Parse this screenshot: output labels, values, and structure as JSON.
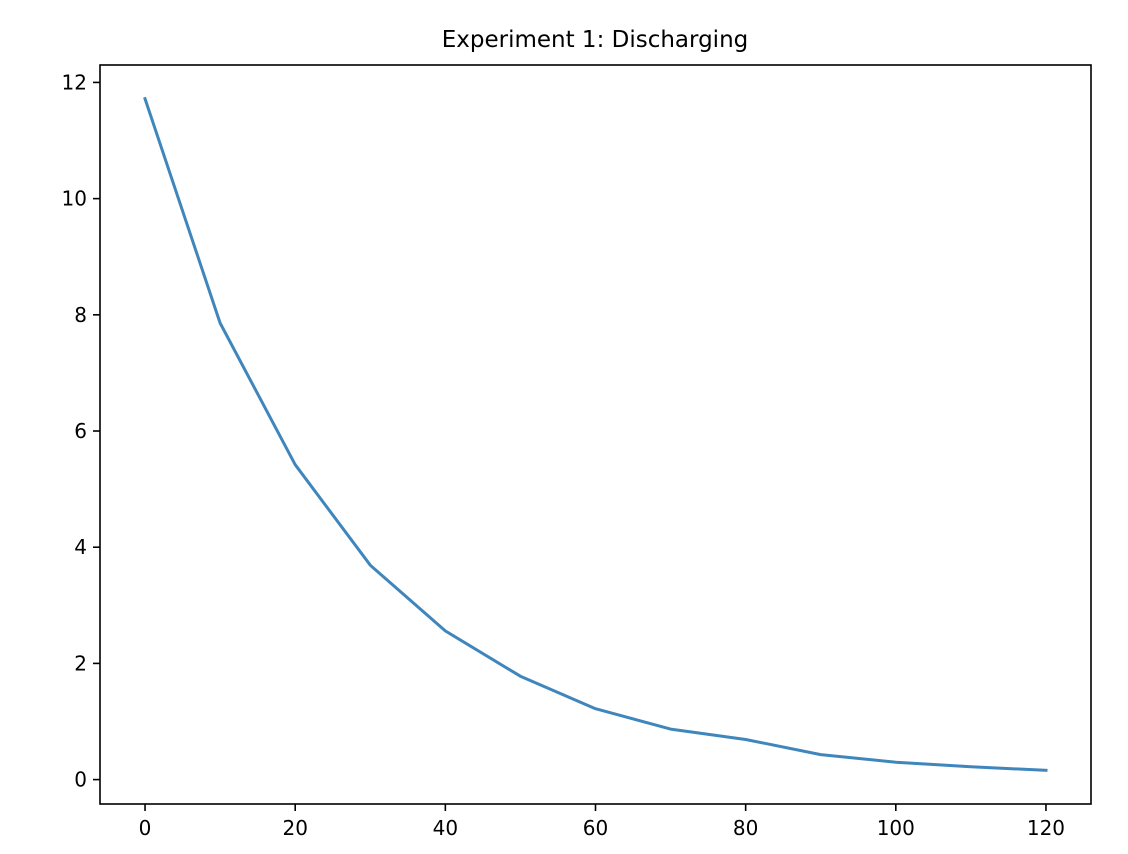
{
  "chart_data": {
    "type": "line",
    "title": "Experiment 1: Discharging",
    "xlabel": "",
    "ylabel": "",
    "x": [
      0,
      10,
      20,
      30,
      40,
      50,
      60,
      70,
      80,
      90,
      100,
      110,
      120
    ],
    "series": [
      {
        "values": [
          11.72,
          7.86,
          5.42,
          3.69,
          2.56,
          1.78,
          1.22,
          0.87,
          0.69,
          0.43,
          0.3,
          0.22,
          0.16
        ],
        "color": "#3f86bd"
      }
    ],
    "xlim": [
      -6,
      126
    ],
    "ylim": [
      -0.42,
      12.3
    ],
    "xticks": [
      0,
      20,
      40,
      60,
      80,
      100,
      120
    ],
    "yticks": [
      0,
      2,
      4,
      6,
      8,
      10,
      12
    ],
    "xtick_labels": [
      "0",
      "20",
      "40",
      "60",
      "80",
      "100",
      "120"
    ],
    "ytick_labels": [
      "0",
      "2",
      "4",
      "6",
      "8",
      "10",
      "12"
    ],
    "grid": false,
    "legend": "none"
  }
}
